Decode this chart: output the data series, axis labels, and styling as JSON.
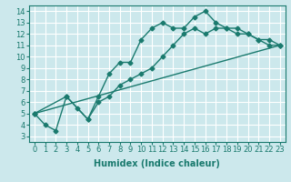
{
  "xlabel": "Humidex (Indice chaleur)",
  "background_color": "#cce8ec",
  "grid_color": "#ffffff",
  "line_color": "#1a7a6e",
  "xlim": [
    -0.5,
    23.5
  ],
  "ylim": [
    2.5,
    14.5
  ],
  "xticks": [
    0,
    1,
    2,
    3,
    4,
    5,
    6,
    7,
    8,
    9,
    10,
    11,
    12,
    13,
    14,
    15,
    16,
    17,
    18,
    19,
    20,
    21,
    22,
    23
  ],
  "yticks": [
    3,
    4,
    5,
    6,
    7,
    8,
    9,
    10,
    11,
    12,
    13,
    14
  ],
  "line1_x": [
    0,
    1,
    2,
    3,
    4,
    5,
    6,
    7,
    8,
    9,
    10,
    11,
    12,
    13,
    14,
    15,
    16,
    17,
    18,
    19,
    20,
    21,
    22,
    23
  ],
  "line1_y": [
    5,
    4,
    3.5,
    6.5,
    5.5,
    4.5,
    6.5,
    8.5,
    9.5,
    9.5,
    11.5,
    12.5,
    13,
    12.5,
    12.5,
    13.5,
    14,
    13,
    12.5,
    12,
    12,
    11.5,
    11,
    11
  ],
  "line2_x": [
    0,
    3,
    5,
    6,
    7,
    8,
    9,
    10,
    11,
    12,
    13,
    14,
    15,
    16,
    17,
    18,
    19,
    20,
    21,
    22,
    23
  ],
  "line2_y": [
    5,
    6.5,
    4.5,
    6,
    6.5,
    7.5,
    8,
    8.5,
    9,
    10,
    11,
    12,
    12.5,
    12,
    12.5,
    12.5,
    12.5,
    12,
    11.5,
    11.5,
    11
  ],
  "line3_x": [
    0,
    23
  ],
  "line3_y": [
    5,
    11
  ],
  "xlabel_fontsize": 7,
  "tick_fontsize": 6
}
